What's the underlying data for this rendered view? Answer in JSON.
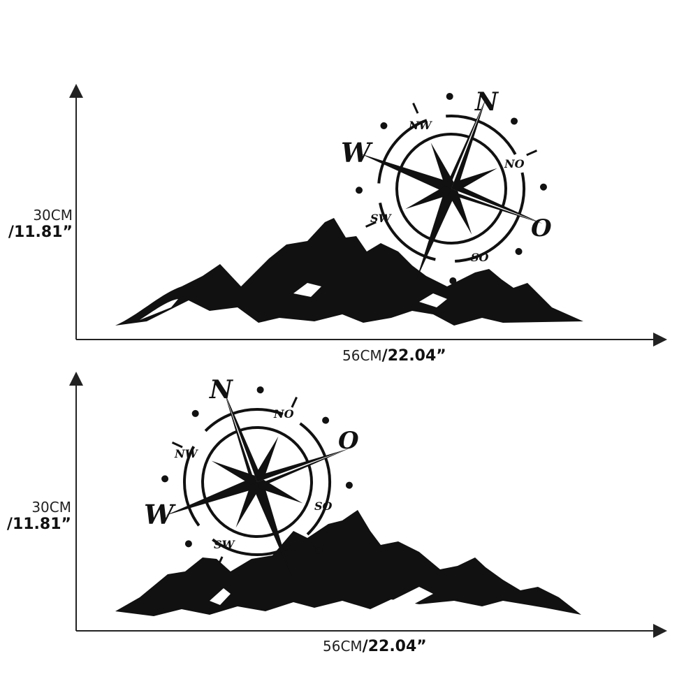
{
  "figures": [
    {
      "height_cm": "30CM",
      "height_in": "/11.81”",
      "width_cm": "56CM",
      "width_in": "/22.04”"
    },
    {
      "height_cm": "30CM",
      "height_in": "/11.81”",
      "width_cm": "56CM",
      "width_in": "/22.04”"
    }
  ],
  "compass_labels": {
    "n": "N",
    "w": "W",
    "o": "O",
    "nw": "NW",
    "no": "NO",
    "sw": "SW",
    "so": "SO"
  },
  "colors": {
    "ink": "#111111",
    "background": "#ffffff"
  }
}
